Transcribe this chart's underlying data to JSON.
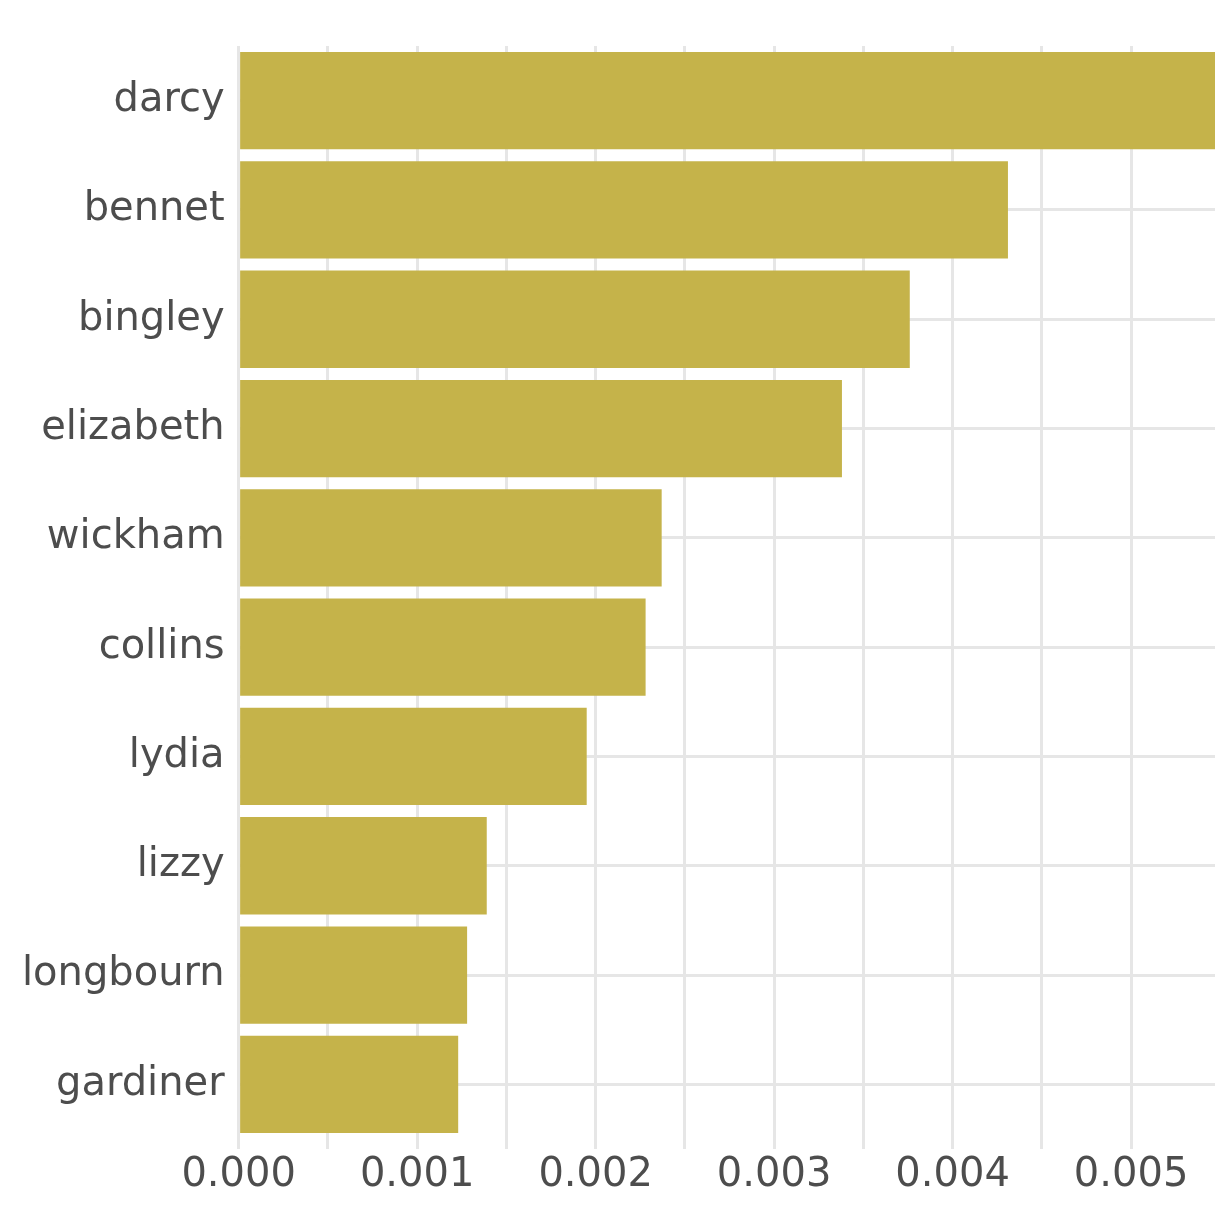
{
  "chart_data": {
    "type": "bar",
    "orientation": "horizontal",
    "categories": [
      "darcy",
      "bennet",
      "bingley",
      "elizabeth",
      "wickham",
      "collins",
      "lydia",
      "lizzy",
      "longbourn",
      "gardiner"
    ],
    "values": [
      0.00547,
      0.00431,
      0.00376,
      0.00338,
      0.00237,
      0.00228,
      0.00195,
      0.00139,
      0.00128,
      0.00123
    ],
    "color": "#c5b34a",
    "xlim": [
      0,
      0.00547
    ],
    "xticks": [
      {
        "value": 0,
        "label": "0.000"
      },
      {
        "value": 0.0005,
        "label": null
      },
      {
        "value": 0.001,
        "label": "0.001"
      },
      {
        "value": 0.0015,
        "label": null
      },
      {
        "value": 0.002,
        "label": "0.002"
      },
      {
        "value": 0.0025,
        "label": null
      },
      {
        "value": 0.003,
        "label": "0.003"
      },
      {
        "value": 0.0035,
        "label": null
      },
      {
        "value": 0.004,
        "label": "0.004"
      },
      {
        "value": 0.0045,
        "label": null
      },
      {
        "value": 0.005,
        "label": "0.005"
      }
    ],
    "grid": true
  }
}
